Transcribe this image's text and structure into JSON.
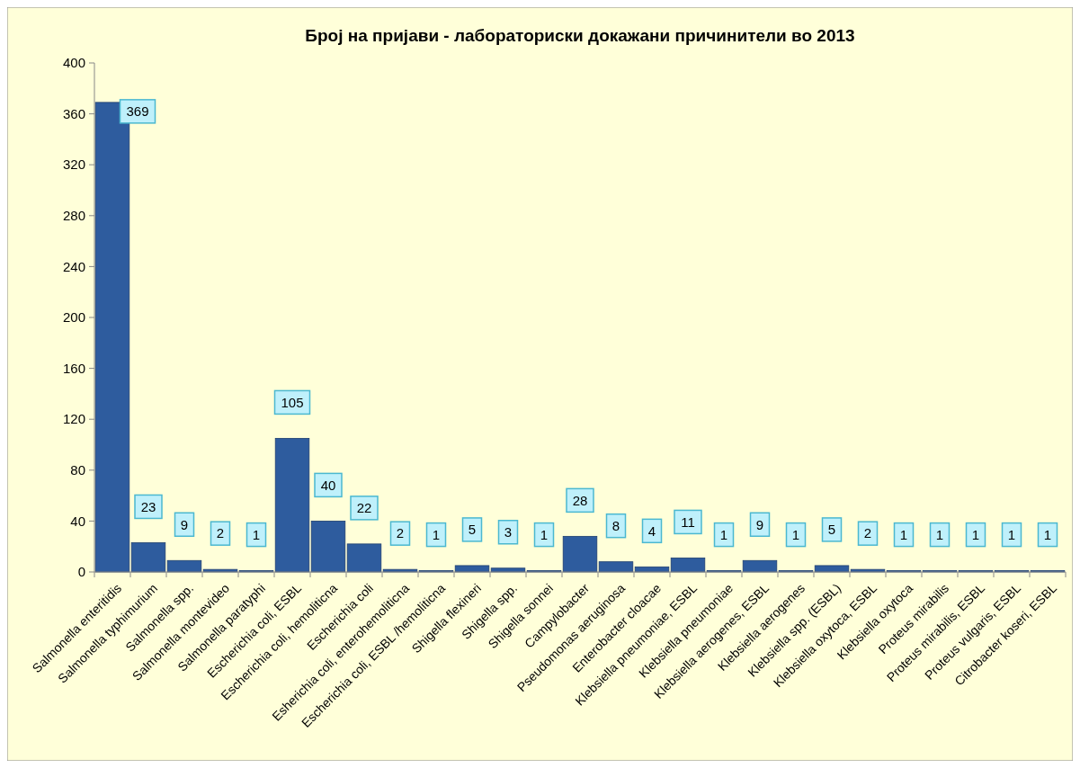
{
  "chart_data": {
    "type": "bar",
    "title": "Број на пријави  - лабораториски  докажани причинители во 2013",
    "categories": [
      "Salmonella enteritidis",
      "Salmonella typhimurium",
      "Salmonella spp.",
      "Salmonella montevideo",
      "Salmonella paratyphi",
      "Escherichia coli, ESBL",
      "Escherichia coli, hemoliticna",
      "Escherichia coli",
      "Esherichia coli, enterohemoliticna",
      "Escherichia coli, ESBL /hemoliticna",
      "Shigella flexineri",
      "Shigella spp.",
      "Shigella sonnei",
      "Campylobacter",
      "Pseudomonas aeruginosa",
      "Enterobacter cloacae",
      "Klebsiella pneumoniae, ESBL",
      "Klebsiella pneumoniae",
      "Klebsiella aerogenes, ESBL",
      "Klebsiella aerogenes",
      "Klebsiella spp. (ESBL)",
      "Klebsiella oxytoca, ESBL",
      "Klebsiella oxytoca",
      "Proteus mirabilis",
      "Proteus mirabilis, ESBL",
      "Proteus vulgaris, ESBL",
      "Citrobacter koseri, ESBL"
    ],
    "values": [
      369,
      23,
      9,
      2,
      1,
      105,
      40,
      22,
      2,
      1,
      5,
      3,
      1,
      28,
      8,
      4,
      11,
      1,
      9,
      1,
      5,
      2,
      1,
      1,
      1,
      1,
      1
    ],
    "color": "#2e5c9e",
    "ylim": [
      0,
      400
    ],
    "yticks": [
      0,
      40,
      80,
      120,
      160,
      200,
      240,
      280,
      320,
      360,
      400
    ],
    "data_labels": true,
    "grid": false
  }
}
